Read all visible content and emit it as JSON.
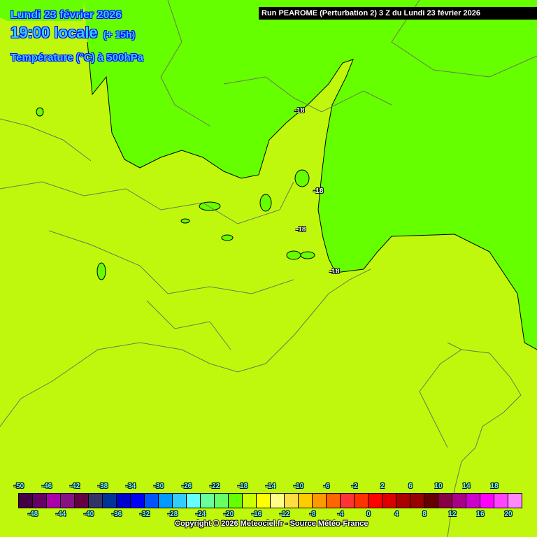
{
  "header": {
    "date": "Lundi 23 février 2026",
    "time": "19:00 locale",
    "lead": "(+ 15h)",
    "parameter": "Température (°C) à 500hPa",
    "run": "Run PEAROME (Perturbation 2) 3 Z du Lundi 23 février 2026"
  },
  "map": {
    "background_color": "#c0f80d",
    "cold_region_color": "#66ff00",
    "border_color": "#6a7a50",
    "contour_labels": [
      "-18",
      "-18",
      "-18",
      "-18"
    ]
  },
  "legend": {
    "colors": [
      "#440044",
      "#660066",
      "#aa00aa",
      "#881188",
      "#660044",
      "#333366",
      "#003399",
      "#0000cc",
      "#0000ff",
      "#0055ff",
      "#0099ff",
      "#33ccff",
      "#66ffff",
      "#66ff99",
      "#66ff66",
      "#66ff00",
      "#ccff00",
      "#ffff00",
      "#ffff88",
      "#ffdd44",
      "#ffcc00",
      "#ff9900",
      "#ff6600",
      "#ff3333",
      "#ff3300",
      "#ff0000",
      "#dd0000",
      "#aa0000",
      "#990000",
      "#660000",
      "#880044",
      "#aa0088",
      "#cc00cc",
      "#ff00ff",
      "#ff44ff",
      "#ff88ff"
    ],
    "top_labels": [
      "-50",
      "-46",
      "-42",
      "-38",
      "-34",
      "-30",
      "-26",
      "-22",
      "-18",
      "-14",
      "-10",
      "-6",
      "-2",
      "2",
      "6",
      "10",
      "14",
      "18"
    ],
    "bottom_labels": [
      "-48",
      "-44",
      "-40",
      "-36",
      "-32",
      "-28",
      "-24",
      "-20",
      "-16",
      "-12",
      "-8",
      "-4",
      "0",
      "4",
      "8",
      "12",
      "16",
      "20"
    ]
  },
  "footer": {
    "copyright": "Copyright © 2026 Meteociel.fr - Source Météo-France"
  }
}
